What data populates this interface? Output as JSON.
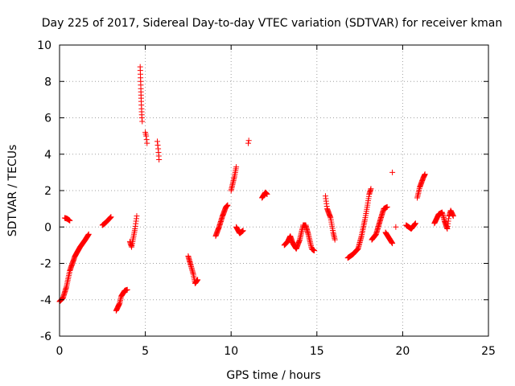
{
  "chart_data": {
    "type": "scatter",
    "title": "Day 225 of 2017, Sidereal Day-to-day VTEC variation (SDTVAR) for receiver kman",
    "xlabel": "GPS time / hours",
    "ylabel": "SDTVAR / TECUs",
    "xlim": [
      0,
      25
    ],
    "ylim": [
      -6,
      10
    ],
    "xticks": [
      0,
      5,
      10,
      15,
      20,
      25
    ],
    "yticks": [
      -6,
      -4,
      -2,
      0,
      2,
      4,
      6,
      8,
      10
    ],
    "grid": true,
    "legend": "none",
    "marker": "+",
    "colors": {
      "series": "#ff0000",
      "grid": "#a0a0a0",
      "axis": "#000000",
      "background": "#ffffff"
    },
    "series": [
      {
        "name": "SDTVAR",
        "segments": [
          [
            [
              0.0,
              -4.1
            ],
            [
              0.2,
              -3.9
            ],
            [
              0.4,
              -3.3
            ],
            [
              0.6,
              -2.4
            ],
            [
              0.9,
              -1.6
            ],
            [
              1.2,
              -1.1
            ],
            [
              1.5,
              -0.7
            ],
            [
              1.7,
              -0.4
            ]
          ],
          [
            [
              0.3,
              0.5
            ],
            [
              0.45,
              0.45
            ],
            [
              0.6,
              0.35
            ]
          ],
          [
            [
              2.5,
              0.1
            ],
            [
              2.7,
              0.25
            ],
            [
              2.9,
              0.45
            ],
            [
              3.0,
              0.55
            ]
          ],
          [
            [
              3.3,
              -4.6
            ],
            [
              3.5,
              -4.2
            ],
            [
              3.6,
              -3.8
            ],
            [
              3.8,
              -3.5
            ],
            [
              3.95,
              -3.45
            ]
          ],
          [
            [
              4.1,
              -0.8
            ],
            [
              4.2,
              -1.1
            ],
            [
              4.3,
              -0.6
            ],
            [
              4.4,
              -0.1
            ],
            [
              4.5,
              0.6
            ]
          ],
          [
            [
              4.7,
              8.8
            ],
            [
              4.72,
              8.2
            ],
            [
              4.74,
              7.6
            ],
            [
              4.76,
              6.9
            ],
            [
              4.78,
              6.5
            ],
            [
              4.8,
              6.0
            ],
            [
              4.82,
              5.8
            ]
          ],
          [
            [
              5.0,
              5.2
            ],
            [
              5.05,
              5.0
            ],
            [
              5.1,
              4.6
            ]
          ],
          [
            [
              5.7,
              4.7
            ],
            [
              5.75,
              4.3
            ],
            [
              5.8,
              3.7
            ]
          ],
          [
            [
              7.5,
              -1.6
            ],
            [
              7.65,
              -2.1
            ],
            [
              7.8,
              -2.6
            ],
            [
              7.9,
              -3.1
            ],
            [
              8.05,
              -2.9
            ]
          ],
          [
            [
              9.1,
              -0.5
            ],
            [
              9.3,
              0.0
            ],
            [
              9.5,
              0.6
            ],
            [
              9.7,
              1.1
            ],
            [
              9.8,
              1.2
            ]
          ],
          [
            [
              10.0,
              2.0
            ],
            [
              10.1,
              2.4
            ],
            [
              10.2,
              2.8
            ],
            [
              10.3,
              3.3
            ]
          ],
          [
            [
              10.3,
              0.0
            ],
            [
              10.5,
              -0.35
            ],
            [
              10.7,
              -0.2
            ]
          ],
          [
            [
              11.0,
              4.6
            ],
            [
              11.03,
              4.75
            ]
          ],
          [
            [
              11.8,
              1.6
            ],
            [
              12.0,
              1.9
            ],
            [
              12.1,
              1.8
            ]
          ],
          [
            [
              13.1,
              -1.0
            ],
            [
              13.3,
              -0.8
            ],
            [
              13.45,
              -0.5
            ],
            [
              13.6,
              -0.9
            ],
            [
              13.8,
              -1.2
            ],
            [
              14.0,
              -0.7
            ],
            [
              14.2,
              0.1
            ],
            [
              14.35,
              0.1
            ],
            [
              14.5,
              -0.4
            ],
            [
              14.7,
              -1.2
            ],
            [
              14.85,
              -1.3
            ]
          ],
          [
            [
              15.5,
              1.7
            ],
            [
              15.6,
              1.0
            ],
            [
              15.8,
              0.5
            ],
            [
              15.95,
              -0.3
            ],
            [
              16.05,
              -0.7
            ]
          ],
          [
            [
              16.8,
              -1.7
            ],
            [
              17.1,
              -1.5
            ],
            [
              17.4,
              -1.2
            ],
            [
              17.6,
              -0.5
            ],
            [
              17.8,
              0.4
            ],
            [
              17.95,
              1.2
            ],
            [
              18.05,
              1.8
            ],
            [
              18.15,
              2.1
            ]
          ],
          [
            [
              18.2,
              -0.7
            ],
            [
              18.45,
              -0.4
            ],
            [
              18.7,
              0.4
            ],
            [
              18.9,
              1.0
            ],
            [
              19.1,
              1.1
            ]
          ],
          [
            [
              19.0,
              -0.3
            ],
            [
              19.2,
              -0.6
            ],
            [
              19.4,
              -0.9
            ]
          ],
          [
            [
              19.4,
              3.0
            ]
          ],
          [
            [
              19.6,
              0.0
            ]
          ],
          [
            [
              20.2,
              0.1
            ],
            [
              20.5,
              -0.1
            ],
            [
              20.75,
              0.2
            ]
          ],
          [
            [
              20.85,
              1.6
            ],
            [
              21.0,
              2.2
            ],
            [
              21.2,
              2.7
            ],
            [
              21.3,
              2.9
            ]
          ],
          [
            [
              21.85,
              0.2
            ],
            [
              22.1,
              0.7
            ],
            [
              22.3,
              0.8
            ],
            [
              22.45,
              0.3
            ],
            [
              22.6,
              -0.1
            ],
            [
              22.7,
              0.6
            ],
            [
              22.8,
              0.9
            ],
            [
              22.95,
              0.6
            ]
          ]
        ]
      }
    ]
  }
}
